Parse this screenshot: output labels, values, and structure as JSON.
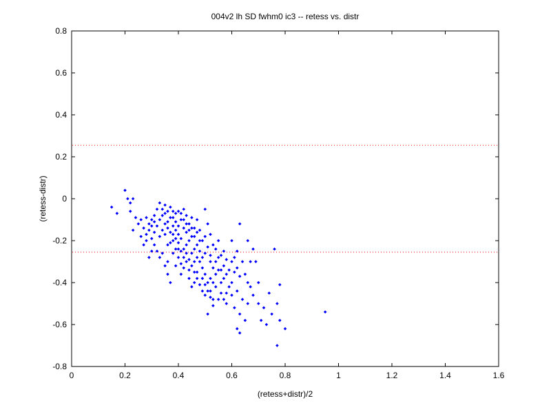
{
  "chart_data": {
    "type": "scatter",
    "title": "004v2 lh SD fwhm0 ic3 -- retess vs. distr",
    "xlabel": "(retess+distr)/2",
    "ylabel": "(retess-distr)",
    "xlim": [
      0,
      1.6
    ],
    "ylim": [
      -0.8,
      0.8
    ],
    "xticks": [
      "0",
      "0.2",
      "0.4",
      "0.6",
      "0.8",
      "1",
      "1.2",
      "1.4",
      "1.6"
    ],
    "yticks": [
      "-0.8",
      "-0.6",
      "-0.4",
      "-0.2",
      "0",
      "0.2",
      "0.4",
      "0.6",
      "0.8"
    ],
    "grid": false,
    "reference_lines": [
      0.255,
      -0.255
    ],
    "colors": {
      "points": "#0000ff",
      "reference_lines": "#ff0000"
    },
    "series": [
      {
        "points": [
          [
            0.15,
            -0.04
          ],
          [
            0.17,
            -0.07
          ],
          [
            0.2,
            0.04
          ],
          [
            0.21,
            0.0
          ],
          [
            0.22,
            -0.02
          ],
          [
            0.23,
            0.0
          ],
          [
            0.22,
            -0.06
          ],
          [
            0.24,
            -0.09
          ],
          [
            0.25,
            -0.12
          ],
          [
            0.23,
            -0.15
          ],
          [
            0.26,
            -0.1
          ],
          [
            0.27,
            -0.14
          ],
          [
            0.28,
            -0.09
          ],
          [
            0.29,
            -0.12
          ],
          [
            0.3,
            -0.1
          ],
          [
            0.28,
            -0.2
          ],
          [
            0.26,
            -0.18
          ],
          [
            0.3,
            -0.25
          ],
          [
            0.29,
            -0.28
          ],
          [
            0.31,
            -0.16
          ],
          [
            0.32,
            -0.05
          ],
          [
            0.33,
            -0.02
          ],
          [
            0.34,
            -0.08
          ],
          [
            0.35,
            -0.12
          ],
          [
            0.33,
            -0.18
          ],
          [
            0.36,
            -0.22
          ],
          [
            0.34,
            -0.26
          ],
          [
            0.37,
            -0.04
          ],
          [
            0.38,
            -0.09
          ],
          [
            0.39,
            -0.15
          ],
          [
            0.4,
            -0.06
          ],
          [
            0.41,
            -0.1
          ],
          [
            0.42,
            -0.14
          ],
          [
            0.43,
            -0.08
          ],
          [
            0.44,
            -0.12
          ],
          [
            0.45,
            -0.18
          ],
          [
            0.38,
            -0.2
          ],
          [
            0.4,
            -0.24
          ],
          [
            0.42,
            -0.28
          ],
          [
            0.36,
            -0.3
          ],
          [
            0.39,
            -0.32
          ],
          [
            0.41,
            -0.36
          ],
          [
            0.37,
            -0.4
          ],
          [
            0.43,
            -0.22
          ],
          [
            0.45,
            -0.26
          ],
          [
            0.46,
            -0.3
          ],
          [
            0.44,
            -0.34
          ],
          [
            0.47,
            -0.1
          ],
          [
            0.48,
            -0.15
          ],
          [
            0.49,
            -0.2
          ],
          [
            0.5,
            -0.05
          ],
          [
            0.51,
            -0.12
          ],
          [
            0.52,
            -0.17
          ],
          [
            0.53,
            -0.22
          ],
          [
            0.5,
            -0.26
          ],
          [
            0.48,
            -0.3
          ],
          [
            0.47,
            -0.35
          ],
          [
            0.46,
            -0.4
          ],
          [
            0.49,
            -0.38
          ],
          [
            0.52,
            -0.3
          ],
          [
            0.54,
            -0.24
          ],
          [
            0.55,
            -0.2
          ],
          [
            0.56,
            -0.27
          ],
          [
            0.57,
            -0.32
          ],
          [
            0.58,
            -0.36
          ],
          [
            0.54,
            -0.42
          ],
          [
            0.52,
            -0.44
          ],
          [
            0.5,
            -0.46
          ],
          [
            0.53,
            -0.48
          ],
          [
            0.51,
            -0.55
          ],
          [
            0.56,
            -0.4
          ],
          [
            0.58,
            -0.45
          ],
          [
            0.6,
            -0.3
          ],
          [
            0.61,
            -0.35
          ],
          [
            0.62,
            -0.25
          ],
          [
            0.63,
            -0.12
          ],
          [
            0.6,
            -0.4
          ],
          [
            0.62,
            -0.44
          ],
          [
            0.64,
            -0.48
          ],
          [
            0.61,
            -0.52
          ],
          [
            0.63,
            -0.55
          ],
          [
            0.62,
            -0.62
          ],
          [
            0.63,
            -0.64
          ],
          [
            0.65,
            -0.58
          ],
          [
            0.66,
            -0.5
          ],
          [
            0.67,
            -0.42
          ],
          [
            0.66,
            -0.2
          ],
          [
            0.68,
            -0.24
          ],
          [
            0.69,
            -0.3
          ],
          [
            0.7,
            -0.4
          ],
          [
            0.68,
            -0.46
          ],
          [
            0.7,
            -0.5
          ],
          [
            0.72,
            -0.52
          ],
          [
            0.71,
            -0.58
          ],
          [
            0.73,
            -0.6
          ],
          [
            0.74,
            -0.45
          ],
          [
            0.75,
            -0.55
          ],
          [
            0.76,
            -0.24
          ],
          [
            0.77,
            -0.5
          ],
          [
            0.78,
            -0.41
          ],
          [
            0.78,
            -0.58
          ],
          [
            0.8,
            -0.62
          ],
          [
            0.77,
            -0.7
          ],
          [
            0.95,
            -0.54
          ],
          [
            0.31,
            -0.08
          ],
          [
            0.32,
            -0.13
          ],
          [
            0.34,
            -0.15
          ],
          [
            0.35,
            -0.07
          ],
          [
            0.36,
            -0.11
          ],
          [
            0.37,
            -0.16
          ],
          [
            0.38,
            -0.13
          ],
          [
            0.39,
            -0.07
          ],
          [
            0.4,
            -0.17
          ],
          [
            0.41,
            -0.19
          ],
          [
            0.42,
            -0.05
          ],
          [
            0.43,
            -0.16
          ],
          [
            0.44,
            -0.2
          ],
          [
            0.45,
            -0.09
          ],
          [
            0.46,
            -0.14
          ],
          [
            0.47,
            -0.22
          ],
          [
            0.48,
            -0.25
          ],
          [
            0.49,
            -0.28
          ],
          [
            0.5,
            -0.18
          ],
          [
            0.51,
            -0.23
          ],
          [
            0.52,
            -0.27
          ],
          [
            0.53,
            -0.33
          ],
          [
            0.54,
            -0.36
          ],
          [
            0.55,
            -0.28
          ],
          [
            0.56,
            -0.34
          ],
          [
            0.57,
            -0.38
          ],
          [
            0.58,
            -0.29
          ],
          [
            0.59,
            -0.34
          ],
          [
            0.6,
            -0.2
          ],
          [
            0.61,
            -0.28
          ],
          [
            0.62,
            -0.33
          ],
          [
            0.63,
            -0.37
          ],
          [
            0.64,
            -0.3
          ],
          [
            0.65,
            -0.36
          ],
          [
            0.66,
            -0.4
          ],
          [
            0.67,
            -0.3
          ],
          [
            0.3,
            -0.19
          ],
          [
            0.31,
            -0.22
          ],
          [
            0.32,
            -0.25
          ],
          [
            0.33,
            -0.28
          ],
          [
            0.35,
            -0.32
          ],
          [
            0.36,
            -0.36
          ],
          [
            0.38,
            -0.26
          ],
          [
            0.39,
            -0.24
          ],
          [
            0.4,
            -0.28
          ],
          [
            0.41,
            -0.31
          ],
          [
            0.42,
            -0.33
          ],
          [
            0.43,
            -0.3
          ],
          [
            0.44,
            -0.38
          ],
          [
            0.45,
            -0.42
          ],
          [
            0.46,
            -0.24
          ],
          [
            0.47,
            -0.28
          ],
          [
            0.48,
            -0.2
          ],
          [
            0.49,
            -0.33
          ],
          [
            0.5,
            -0.36
          ],
          [
            0.51,
            -0.4
          ],
          [
            0.52,
            -0.38
          ],
          [
            0.53,
            -0.4
          ],
          [
            0.54,
            -0.3
          ],
          [
            0.55,
            -0.34
          ],
          [
            0.56,
            -0.45
          ],
          [
            0.57,
            -0.48
          ],
          [
            0.58,
            -0.5
          ],
          [
            0.59,
            -0.42
          ],
          [
            0.6,
            -0.46
          ],
          [
            0.57,
            -0.25
          ],
          [
            0.27,
            -0.22
          ],
          [
            0.28,
            -0.17
          ],
          [
            0.29,
            -0.15
          ],
          [
            0.3,
            -0.13
          ],
          [
            0.31,
            -0.11
          ],
          [
            0.33,
            -0.1
          ],
          [
            0.34,
            -0.05
          ],
          [
            0.35,
            -0.03
          ],
          [
            0.36,
            -0.06
          ],
          [
            0.37,
            -0.09
          ],
          [
            0.38,
            -0.06
          ],
          [
            0.39,
            -0.11
          ],
          [
            0.4,
            -0.13
          ],
          [
            0.41,
            -0.07
          ],
          [
            0.42,
            -0.1
          ],
          [
            0.43,
            -0.12
          ],
          [
            0.44,
            -0.15
          ],
          [
            0.45,
            -0.14
          ],
          [
            0.46,
            -0.18
          ],
          [
            0.47,
            -0.16
          ],
          [
            0.35,
            -0.17
          ],
          [
            0.36,
            -0.14
          ],
          [
            0.37,
            -0.21
          ],
          [
            0.38,
            -0.17
          ],
          [
            0.39,
            -0.19
          ],
          [
            0.4,
            -0.21
          ],
          [
            0.41,
            -0.25
          ],
          [
            0.42,
            -0.24
          ],
          [
            0.43,
            -0.26
          ],
          [
            0.44,
            -0.29
          ],
          [
            0.45,
            -0.32
          ],
          [
            0.46,
            -0.35
          ],
          [
            0.47,
            -0.38
          ],
          [
            0.48,
            -0.41
          ],
          [
            0.49,
            -0.44
          ],
          [
            0.5,
            -0.41
          ],
          [
            0.51,
            -0.44
          ],
          [
            0.52,
            -0.47
          ],
          [
            0.53,
            -0.51
          ],
          [
            0.55,
            -0.48
          ]
        ]
      }
    ]
  }
}
